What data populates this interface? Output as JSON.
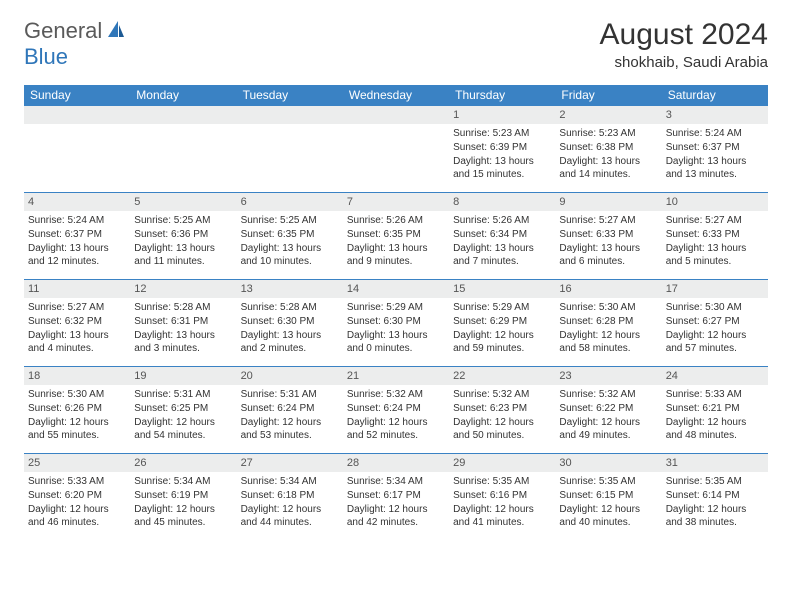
{
  "logo": {
    "general": "General",
    "blue": "Blue"
  },
  "title": "August 2024",
  "location": "shokhaib, Saudi Arabia",
  "colors": {
    "header_bg": "#3a82c4",
    "header_text": "#ffffff",
    "row_divider": "#3a82c4",
    "daynum_bg": "#eceded",
    "text": "#333333",
    "logo_gray": "#5a5a5a",
    "logo_blue": "#2f76b9"
  },
  "typography": {
    "title_fontsize": 30,
    "location_fontsize": 15,
    "weekday_fontsize": 12,
    "cell_fontsize": 10
  },
  "weekdays": [
    "Sunday",
    "Monday",
    "Tuesday",
    "Wednesday",
    "Thursday",
    "Friday",
    "Saturday"
  ],
  "weeks": [
    [
      {
        "day": ""
      },
      {
        "day": ""
      },
      {
        "day": ""
      },
      {
        "day": ""
      },
      {
        "day": "1",
        "sunrise": "Sunrise: 5:23 AM",
        "sunset": "Sunset: 6:39 PM",
        "daylight": "Daylight: 13 hours and 15 minutes."
      },
      {
        "day": "2",
        "sunrise": "Sunrise: 5:23 AM",
        "sunset": "Sunset: 6:38 PM",
        "daylight": "Daylight: 13 hours and 14 minutes."
      },
      {
        "day": "3",
        "sunrise": "Sunrise: 5:24 AM",
        "sunset": "Sunset: 6:37 PM",
        "daylight": "Daylight: 13 hours and 13 minutes."
      }
    ],
    [
      {
        "day": "4",
        "sunrise": "Sunrise: 5:24 AM",
        "sunset": "Sunset: 6:37 PM",
        "daylight": "Daylight: 13 hours and 12 minutes."
      },
      {
        "day": "5",
        "sunrise": "Sunrise: 5:25 AM",
        "sunset": "Sunset: 6:36 PM",
        "daylight": "Daylight: 13 hours and 11 minutes."
      },
      {
        "day": "6",
        "sunrise": "Sunrise: 5:25 AM",
        "sunset": "Sunset: 6:35 PM",
        "daylight": "Daylight: 13 hours and 10 minutes."
      },
      {
        "day": "7",
        "sunrise": "Sunrise: 5:26 AM",
        "sunset": "Sunset: 6:35 PM",
        "daylight": "Daylight: 13 hours and 9 minutes."
      },
      {
        "day": "8",
        "sunrise": "Sunrise: 5:26 AM",
        "sunset": "Sunset: 6:34 PM",
        "daylight": "Daylight: 13 hours and 7 minutes."
      },
      {
        "day": "9",
        "sunrise": "Sunrise: 5:27 AM",
        "sunset": "Sunset: 6:33 PM",
        "daylight": "Daylight: 13 hours and 6 minutes."
      },
      {
        "day": "10",
        "sunrise": "Sunrise: 5:27 AM",
        "sunset": "Sunset: 6:33 PM",
        "daylight": "Daylight: 13 hours and 5 minutes."
      }
    ],
    [
      {
        "day": "11",
        "sunrise": "Sunrise: 5:27 AM",
        "sunset": "Sunset: 6:32 PM",
        "daylight": "Daylight: 13 hours and 4 minutes."
      },
      {
        "day": "12",
        "sunrise": "Sunrise: 5:28 AM",
        "sunset": "Sunset: 6:31 PM",
        "daylight": "Daylight: 13 hours and 3 minutes."
      },
      {
        "day": "13",
        "sunrise": "Sunrise: 5:28 AM",
        "sunset": "Sunset: 6:30 PM",
        "daylight": "Daylight: 13 hours and 2 minutes."
      },
      {
        "day": "14",
        "sunrise": "Sunrise: 5:29 AM",
        "sunset": "Sunset: 6:30 PM",
        "daylight": "Daylight: 13 hours and 0 minutes."
      },
      {
        "day": "15",
        "sunrise": "Sunrise: 5:29 AM",
        "sunset": "Sunset: 6:29 PM",
        "daylight": "Daylight: 12 hours and 59 minutes."
      },
      {
        "day": "16",
        "sunrise": "Sunrise: 5:30 AM",
        "sunset": "Sunset: 6:28 PM",
        "daylight": "Daylight: 12 hours and 58 minutes."
      },
      {
        "day": "17",
        "sunrise": "Sunrise: 5:30 AM",
        "sunset": "Sunset: 6:27 PM",
        "daylight": "Daylight: 12 hours and 57 minutes."
      }
    ],
    [
      {
        "day": "18",
        "sunrise": "Sunrise: 5:30 AM",
        "sunset": "Sunset: 6:26 PM",
        "daylight": "Daylight: 12 hours and 55 minutes."
      },
      {
        "day": "19",
        "sunrise": "Sunrise: 5:31 AM",
        "sunset": "Sunset: 6:25 PM",
        "daylight": "Daylight: 12 hours and 54 minutes."
      },
      {
        "day": "20",
        "sunrise": "Sunrise: 5:31 AM",
        "sunset": "Sunset: 6:24 PM",
        "daylight": "Daylight: 12 hours and 53 minutes."
      },
      {
        "day": "21",
        "sunrise": "Sunrise: 5:32 AM",
        "sunset": "Sunset: 6:24 PM",
        "daylight": "Daylight: 12 hours and 52 minutes."
      },
      {
        "day": "22",
        "sunrise": "Sunrise: 5:32 AM",
        "sunset": "Sunset: 6:23 PM",
        "daylight": "Daylight: 12 hours and 50 minutes."
      },
      {
        "day": "23",
        "sunrise": "Sunrise: 5:32 AM",
        "sunset": "Sunset: 6:22 PM",
        "daylight": "Daylight: 12 hours and 49 minutes."
      },
      {
        "day": "24",
        "sunrise": "Sunrise: 5:33 AM",
        "sunset": "Sunset: 6:21 PM",
        "daylight": "Daylight: 12 hours and 48 minutes."
      }
    ],
    [
      {
        "day": "25",
        "sunrise": "Sunrise: 5:33 AM",
        "sunset": "Sunset: 6:20 PM",
        "daylight": "Daylight: 12 hours and 46 minutes."
      },
      {
        "day": "26",
        "sunrise": "Sunrise: 5:34 AM",
        "sunset": "Sunset: 6:19 PM",
        "daylight": "Daylight: 12 hours and 45 minutes."
      },
      {
        "day": "27",
        "sunrise": "Sunrise: 5:34 AM",
        "sunset": "Sunset: 6:18 PM",
        "daylight": "Daylight: 12 hours and 44 minutes."
      },
      {
        "day": "28",
        "sunrise": "Sunrise: 5:34 AM",
        "sunset": "Sunset: 6:17 PM",
        "daylight": "Daylight: 12 hours and 42 minutes."
      },
      {
        "day": "29",
        "sunrise": "Sunrise: 5:35 AM",
        "sunset": "Sunset: 6:16 PM",
        "daylight": "Daylight: 12 hours and 41 minutes."
      },
      {
        "day": "30",
        "sunrise": "Sunrise: 5:35 AM",
        "sunset": "Sunset: 6:15 PM",
        "daylight": "Daylight: 12 hours and 40 minutes."
      },
      {
        "day": "31",
        "sunrise": "Sunrise: 5:35 AM",
        "sunset": "Sunset: 6:14 PM",
        "daylight": "Daylight: 12 hours and 38 minutes."
      }
    ]
  ]
}
